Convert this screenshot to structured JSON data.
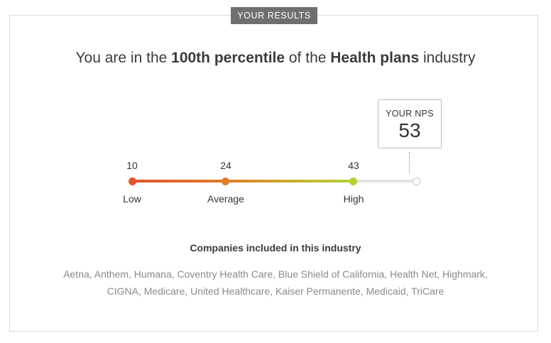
{
  "badge": "YOUR RESULTS",
  "headline": {
    "prefix": "You are in the ",
    "percentile": "100th percentile",
    "middle": " of the ",
    "industry": "Health plans",
    "suffix": " industry"
  },
  "nps": {
    "label": "YOUR NPS",
    "value": "53"
  },
  "scale": [
    {
      "value": "10",
      "label": "Low",
      "color": "#e4532a"
    },
    {
      "value": "24",
      "label": "Average",
      "color": "#de7c28"
    },
    {
      "value": "43",
      "label": "High",
      "color": "#b3d137"
    }
  ],
  "companies": {
    "title": "Companies included in this industry",
    "list": "Aetna, Anthem, Humana, Coventry Health Care, Blue Shield of California, Health Net, Highmark, CIGNA, Medicare, United Healthcare, Kaiser Permanente, Medicaid, TriCare"
  }
}
